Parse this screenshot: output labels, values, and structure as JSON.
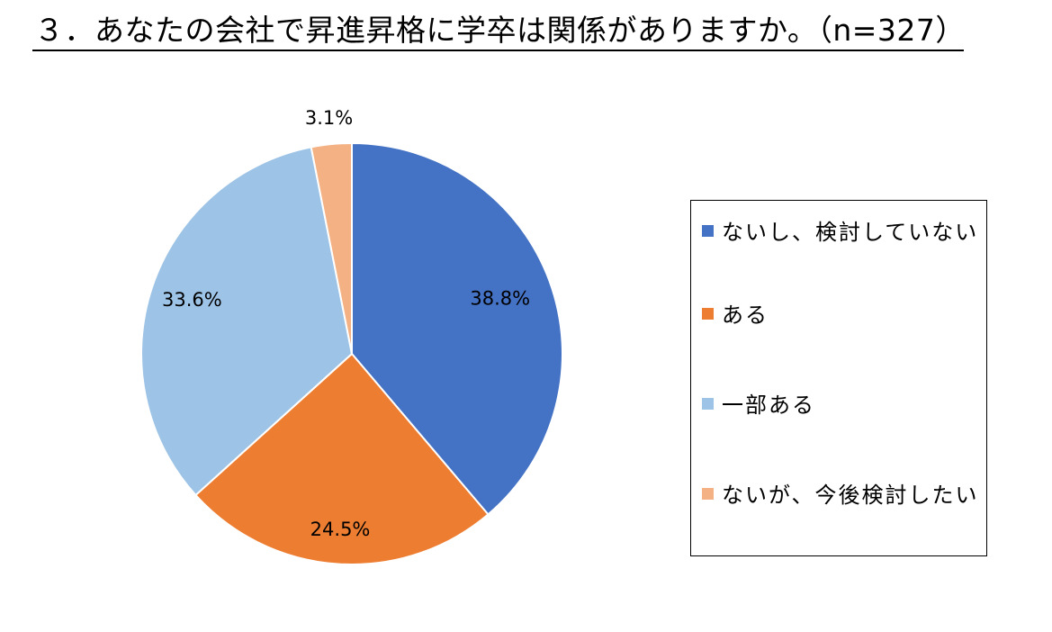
{
  "title": "３．あなたの会社で昇進昇格に学卒は関係がありますか。（n=327）",
  "chart_data": {
    "type": "pie",
    "start_angle_deg": 0,
    "direction": "clockwise",
    "legend_position": "right",
    "slices": [
      {
        "label": "ないし、検討していない",
        "value": 38.8,
        "display": "38.8%",
        "color": "#4472C4"
      },
      {
        "label": "ある",
        "value": 24.5,
        "display": "24.5%",
        "color": "#ED7D31"
      },
      {
        "label": "一部ある",
        "value": 33.6,
        "display": "33.6%",
        "color": "#9DC3E6"
      },
      {
        "label": "ないが、今後検討したい",
        "value": 3.1,
        "display": "3.1%",
        "color": "#F4B183"
      }
    ]
  }
}
